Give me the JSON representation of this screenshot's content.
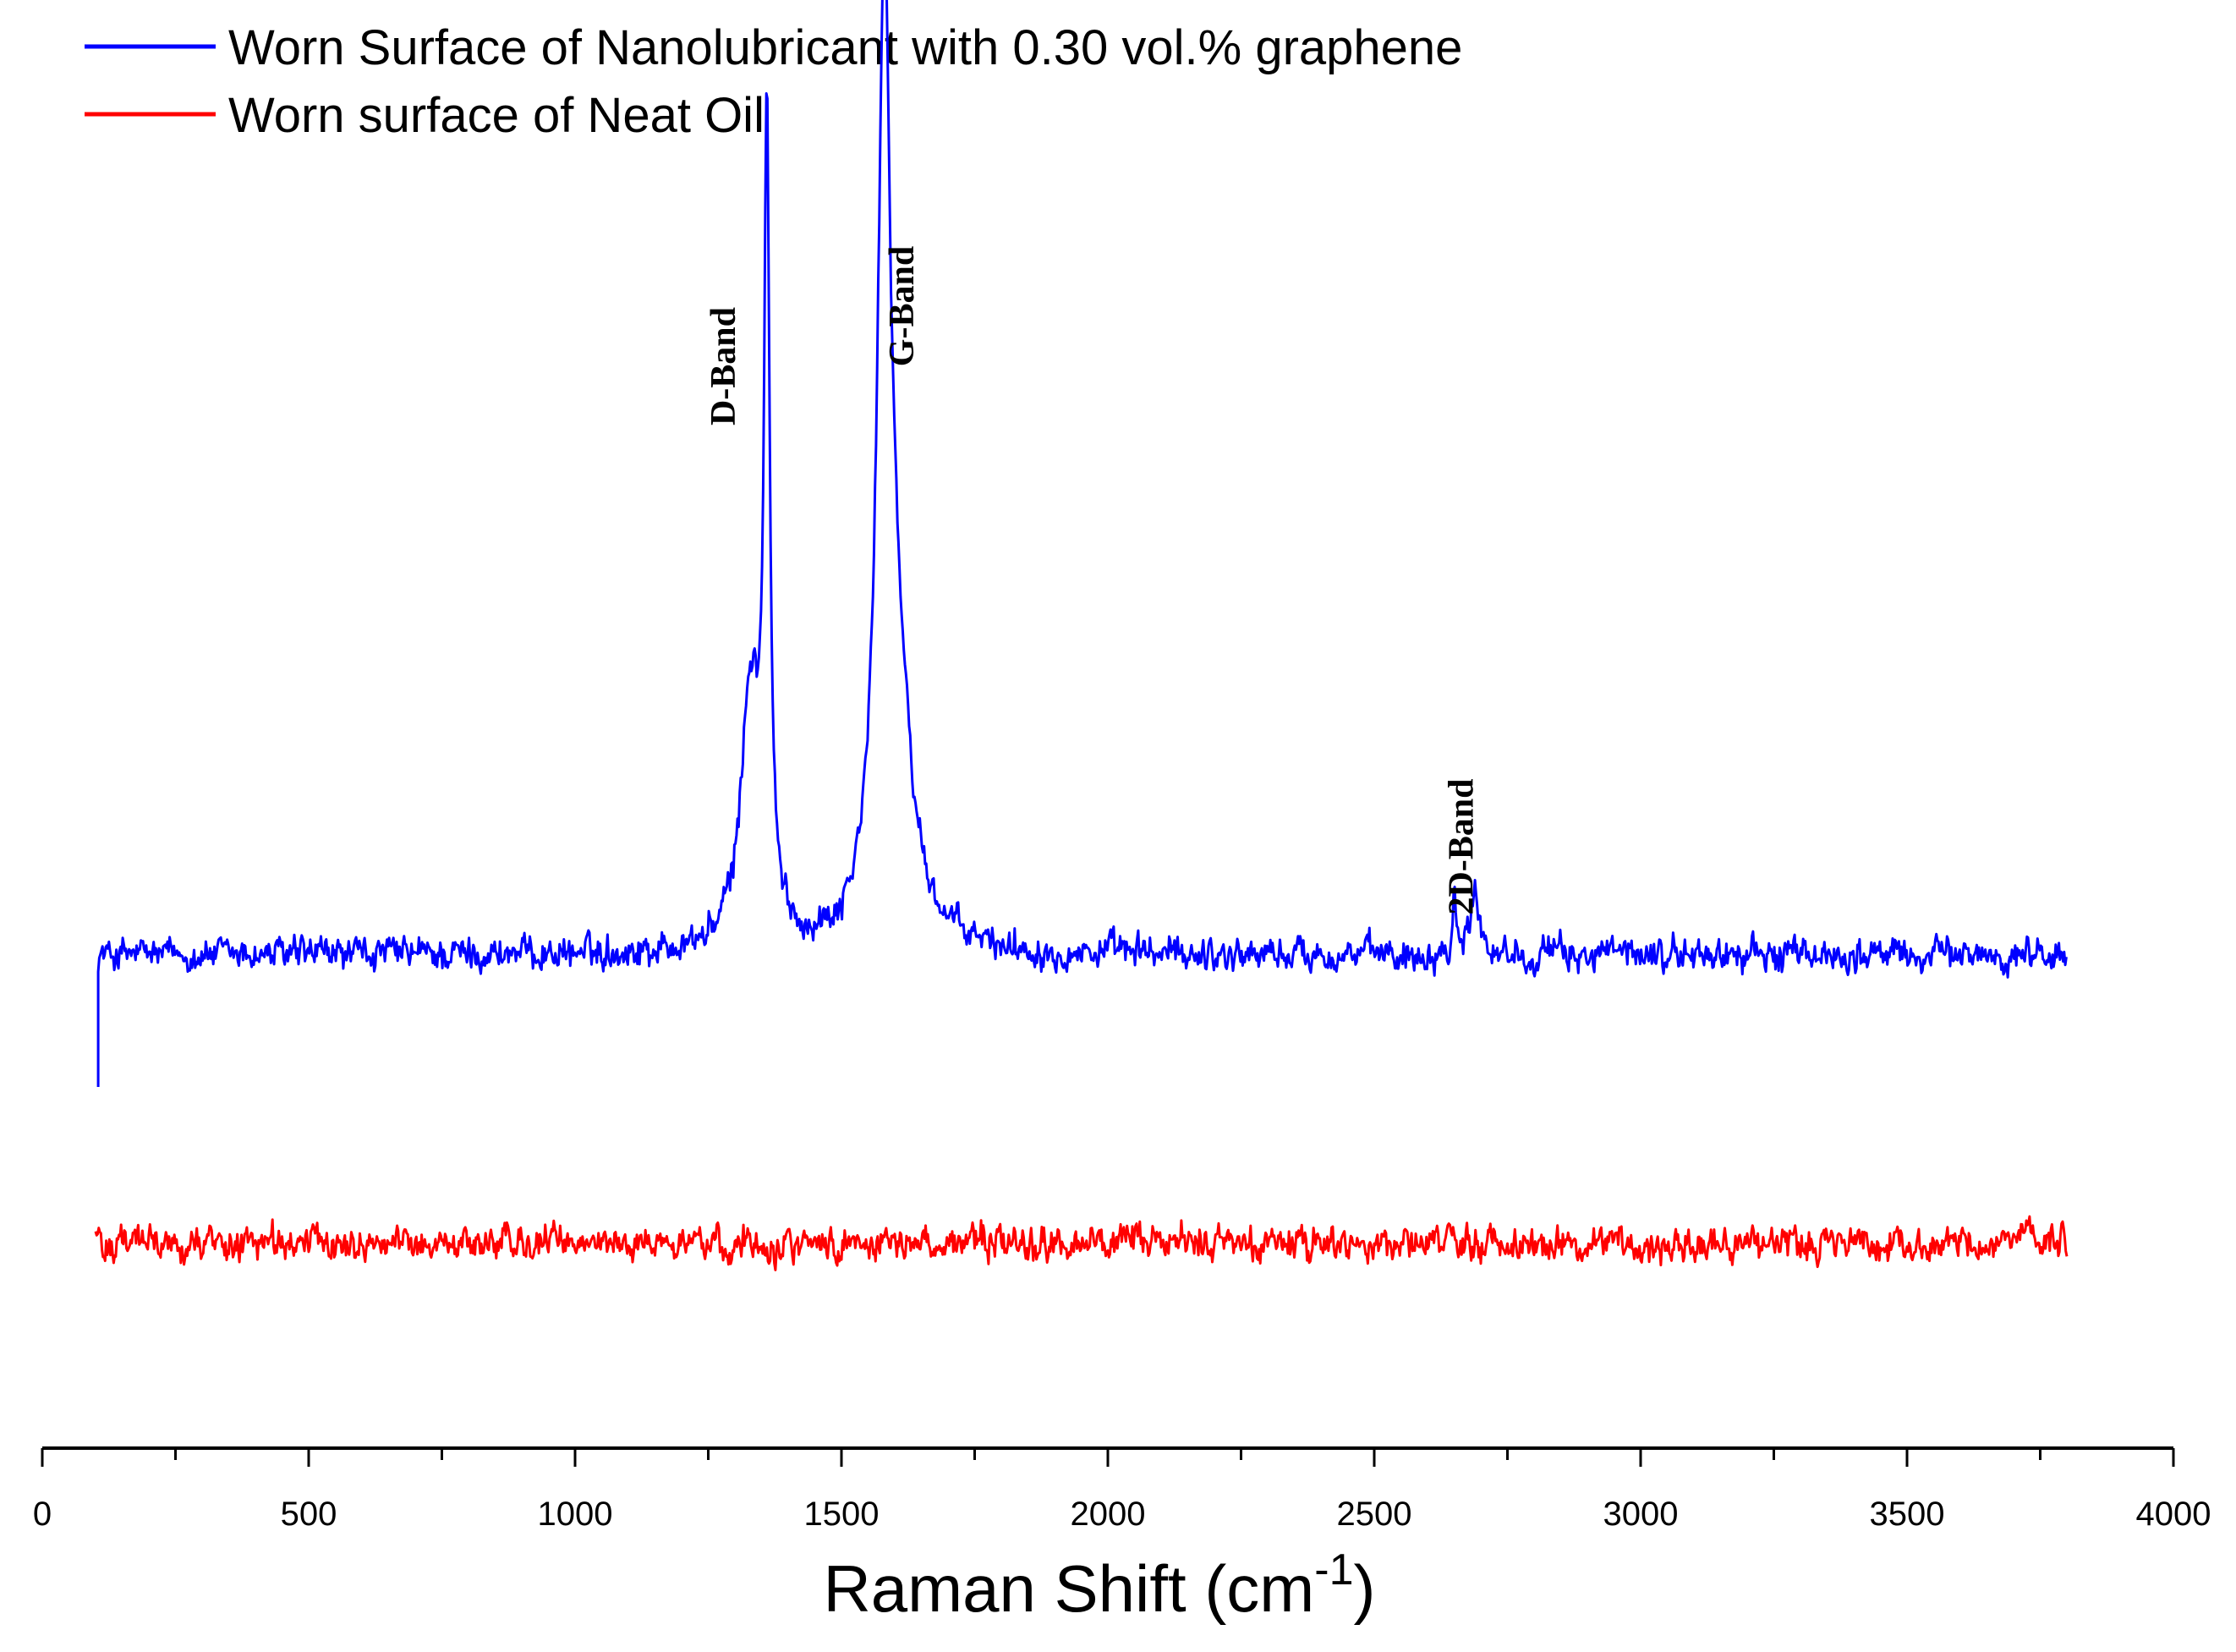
{
  "chart_data": {
    "type": "line",
    "title": "",
    "xlabel": "Raman Shift (cm",
    "xlabel_superscript": "-1",
    "xlabel_suffix": ")",
    "ylabel": "",
    "xlim": [
      0,
      4000
    ],
    "ylim": [
      0,
      1
    ],
    "x_ticks": [
      0,
      500,
      1000,
      1500,
      2000,
      2500,
      3000,
      3500,
      4000
    ],
    "x_tick_labels": [
      "0",
      "500",
      "1000",
      "1500",
      "2000",
      "2500",
      "3000",
      "3500",
      "4000"
    ],
    "grid": false,
    "legend_position": "top-left",
    "series": [
      {
        "name": "Worn Surface of Nanolubricant with 0.30 vol.% graphene",
        "color": "#0000ff",
        "x_range": [
          105,
          3800
        ],
        "baseline": 0.36,
        "noise": 0.015,
        "peaks": [
          {
            "x": 1330,
            "height": 0.22,
            "width": 22
          },
          {
            "x": 1360,
            "height": 0.65,
            "width": 6
          },
          {
            "x": 1580,
            "height": 0.7,
            "width": 14
          },
          {
            "x": 1600,
            "height": 0.2,
            "width": 35
          },
          {
            "x": 2650,
            "height": 0.06,
            "width": 3
          },
          {
            "x": 2690,
            "height": 0.05,
            "width": 12
          }
        ]
      },
      {
        "name": "Worn surface of Neat Oil",
        "color": "#ff0000",
        "x_range": [
          100,
          3800
        ],
        "baseline": 0.12,
        "noise": 0.015,
        "peaks": []
      }
    ],
    "annotations": [
      {
        "text": "D-Band",
        "x": 1300,
        "y": 0.85
      },
      {
        "text": "G-Band",
        "x": 1635,
        "y": 0.9
      },
      {
        "text": "2D-Band",
        "x": 2685,
        "y": 0.45
      }
    ]
  }
}
